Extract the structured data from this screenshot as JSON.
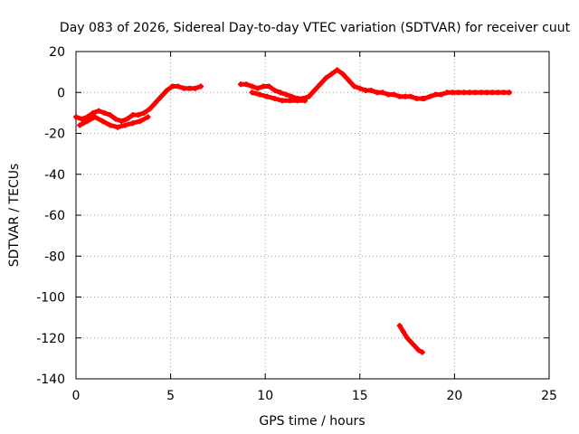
{
  "chart_data": {
    "type": "scatter",
    "title": "Day 083 of 2026, Sidereal Day-to-day VTEC variation (SDTVAR) for receiver cuut",
    "xlabel": "GPS time / hours",
    "ylabel": "SDTVAR / TECUs",
    "xlim": [
      0,
      25
    ],
    "ylim": [
      -140,
      20
    ],
    "x_ticks": [
      0,
      5,
      10,
      15,
      20,
      25
    ],
    "y_ticks": [
      -140,
      -120,
      -100,
      -80,
      -60,
      -40,
      -20,
      0,
      20
    ],
    "grid": true,
    "series_color": "#ff0000",
    "series": [
      {
        "values": [
          {
            "x": 0.0,
            "y": -12
          },
          {
            "x": 0.3,
            "y": -13
          },
          {
            "x": 0.6,
            "y": -12
          },
          {
            "x": 0.9,
            "y": -10
          },
          {
            "x": 1.2,
            "y": -9
          },
          {
            "x": 1.5,
            "y": -10
          },
          {
            "x": 1.8,
            "y": -11
          },
          {
            "x": 2.1,
            "y": -13
          },
          {
            "x": 2.4,
            "y": -14
          },
          {
            "x": 2.7,
            "y": -13
          },
          {
            "x": 3.0,
            "y": -11
          },
          {
            "x": 3.3,
            "y": -11
          },
          {
            "x": 3.6,
            "y": -10
          },
          {
            "x": 3.9,
            "y": -8
          },
          {
            "x": 4.2,
            "y": -5
          },
          {
            "x": 4.5,
            "y": -2
          },
          {
            "x": 4.8,
            "y": 1
          },
          {
            "x": 5.1,
            "y": 3
          },
          {
            "x": 5.4,
            "y": 3
          },
          {
            "x": 5.7,
            "y": 2
          },
          {
            "x": 6.0,
            "y": 2
          },
          {
            "x": 6.3,
            "y": 2
          },
          {
            "x": 6.6,
            "y": 3
          }
        ]
      },
      {
        "values": [
          {
            "x": 0.2,
            "y": -16
          },
          {
            "x": 0.6,
            "y": -14
          },
          {
            "x": 1.0,
            "y": -12
          },
          {
            "x": 1.4,
            "y": -14
          },
          {
            "x": 1.8,
            "y": -16
          },
          {
            "x": 2.2,
            "y": -17
          },
          {
            "x": 2.6,
            "y": -16
          },
          {
            "x": 3.0,
            "y": -15
          },
          {
            "x": 3.4,
            "y": -14
          },
          {
            "x": 3.8,
            "y": -12
          }
        ]
      },
      {
        "values": [
          {
            "x": 8.7,
            "y": 4
          },
          {
            "x": 9.0,
            "y": 4
          },
          {
            "x": 9.3,
            "y": 3
          },
          {
            "x": 9.6,
            "y": 2
          },
          {
            "x": 9.9,
            "y": 3
          },
          {
            "x": 10.2,
            "y": 3
          },
          {
            "x": 10.5,
            "y": 1
          },
          {
            "x": 10.8,
            "y": 0
          },
          {
            "x": 11.1,
            "y": -1
          },
          {
            "x": 11.4,
            "y": -2
          },
          {
            "x": 11.7,
            "y": -3
          },
          {
            "x": 12.0,
            "y": -3
          },
          {
            "x": 12.3,
            "y": -2
          },
          {
            "x": 12.6,
            "y": 1
          },
          {
            "x": 12.9,
            "y": 4
          },
          {
            "x": 13.2,
            "y": 7
          },
          {
            "x": 13.5,
            "y": 9
          },
          {
            "x": 13.8,
            "y": 11
          },
          {
            "x": 14.1,
            "y": 9
          },
          {
            "x": 14.4,
            "y": 6
          },
          {
            "x": 14.7,
            "y": 3
          },
          {
            "x": 15.0,
            "y": 2
          },
          {
            "x": 15.3,
            "y": 1
          },
          {
            "x": 15.6,
            "y": 1
          },
          {
            "x": 15.9,
            "y": 0
          },
          {
            "x": 16.2,
            "y": 0
          },
          {
            "x": 16.5,
            "y": -1
          },
          {
            "x": 16.8,
            "y": -1
          },
          {
            "x": 17.1,
            "y": -2
          },
          {
            "x": 17.4,
            "y": -2
          },
          {
            "x": 17.7,
            "y": -2
          },
          {
            "x": 18.0,
            "y": -3
          },
          {
            "x": 18.3,
            "y": -3
          }
        ]
      },
      {
        "values": [
          {
            "x": 9.3,
            "y": 0
          },
          {
            "x": 9.7,
            "y": -1
          },
          {
            "x": 10.1,
            "y": -2
          },
          {
            "x": 10.5,
            "y": -3
          },
          {
            "x": 10.9,
            "y": -4
          },
          {
            "x": 11.3,
            "y": -4
          },
          {
            "x": 11.7,
            "y": -4
          },
          {
            "x": 12.1,
            "y": -4
          }
        ]
      },
      {
        "values": [
          {
            "x": 18.4,
            "y": -3
          },
          {
            "x": 18.7,
            "y": -2
          },
          {
            "x": 19.0,
            "y": -1
          },
          {
            "x": 19.3,
            "y": -1
          },
          {
            "x": 19.6,
            "y": 0
          },
          {
            "x": 19.9,
            "y": 0
          },
          {
            "x": 20.2,
            "y": 0
          },
          {
            "x": 20.5,
            "y": 0
          },
          {
            "x": 20.8,
            "y": 0
          },
          {
            "x": 21.1,
            "y": 0
          },
          {
            "x": 21.4,
            "y": 0
          },
          {
            "x": 21.7,
            "y": 0
          },
          {
            "x": 22.0,
            "y": 0
          },
          {
            "x": 22.3,
            "y": 0
          },
          {
            "x": 22.6,
            "y": 0
          },
          {
            "x": 22.9,
            "y": 0
          }
        ]
      },
      {
        "values": [
          {
            "x": 17.1,
            "y": -114
          },
          {
            "x": 17.3,
            "y": -117
          },
          {
            "x": 17.5,
            "y": -120
          },
          {
            "x": 17.7,
            "y": -122
          },
          {
            "x": 17.9,
            "y": -124
          },
          {
            "x": 18.1,
            "y": -126
          },
          {
            "x": 18.3,
            "y": -127
          }
        ]
      }
    ]
  }
}
